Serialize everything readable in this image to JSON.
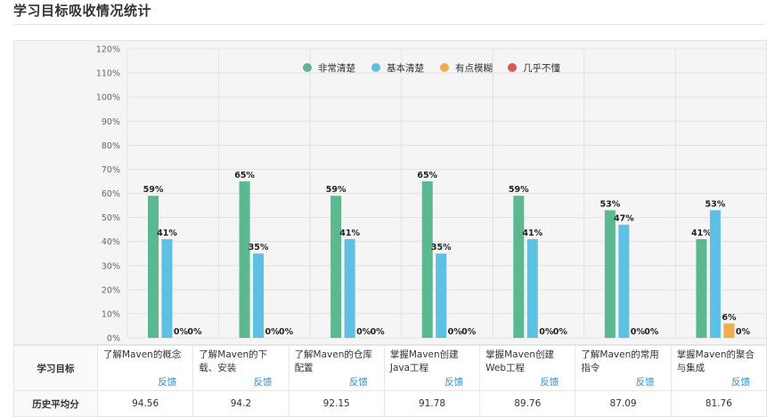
{
  "page": {
    "title": "学习目标吸收情况统计"
  },
  "chart_data": {
    "type": "bar",
    "ylim": [
      0,
      120
    ],
    "yticks": [
      "0%",
      "10%",
      "20%",
      "30%",
      "40%",
      "50%",
      "60%",
      "70%",
      "80%",
      "90%",
      "100%",
      "110%",
      "120%"
    ],
    "grid": true,
    "legend_position": "top-center",
    "categories": [
      "了解Maven的概念",
      "了解Maven的下载、安装",
      "了解Maven的仓库配置",
      "掌握Maven创建Java工程",
      "掌握Maven创建Web工程",
      "了解Maven的常用指令",
      "掌握Maven的聚合与集成"
    ],
    "series": [
      {
        "name": "非常清楚",
        "color": "#5cb891",
        "values": [
          59,
          65,
          59,
          65,
          59,
          53,
          41
        ],
        "labels": [
          "59%",
          "65%",
          "59%",
          "65%",
          "59%",
          "53%",
          "41%"
        ]
      },
      {
        "name": "基本清楚",
        "color": "#5ec0e3",
        "values": [
          41,
          35,
          41,
          35,
          41,
          47,
          53
        ],
        "labels": [
          "41%",
          "35%",
          "41%",
          "35%",
          "41%",
          "47%",
          "53%"
        ]
      },
      {
        "name": "有点模糊",
        "color": "#f0ad4e",
        "values": [
          0,
          0,
          0,
          0,
          0,
          0,
          6
        ],
        "labels": [
          "0%",
          "0%",
          "0%",
          "0%",
          "0%",
          "0%",
          "6%"
        ]
      },
      {
        "name": "几乎不懂",
        "color": "#e05555",
        "values": [
          0,
          0,
          0,
          0,
          0,
          0,
          0
        ],
        "labels": [
          "0%",
          "0%",
          "0%",
          "0%",
          "0%",
          "0%",
          "0%"
        ]
      }
    ]
  },
  "table": {
    "goal_header": "学习目标",
    "score_header": "历史平均分",
    "feedback_label": "反馈",
    "goals": [
      "了解Maven的概念",
      "了解Maven的下载、安装",
      "了解Maven的仓库配置",
      "掌握Maven创建Java工程",
      "掌握Maven创建Web工程",
      "了解Maven的常用指令",
      "掌握Maven的聚合与集成"
    ],
    "scores": [
      "94.56",
      "94.2",
      "92.15",
      "91.78",
      "89.76",
      "87.09",
      "81.76"
    ]
  }
}
